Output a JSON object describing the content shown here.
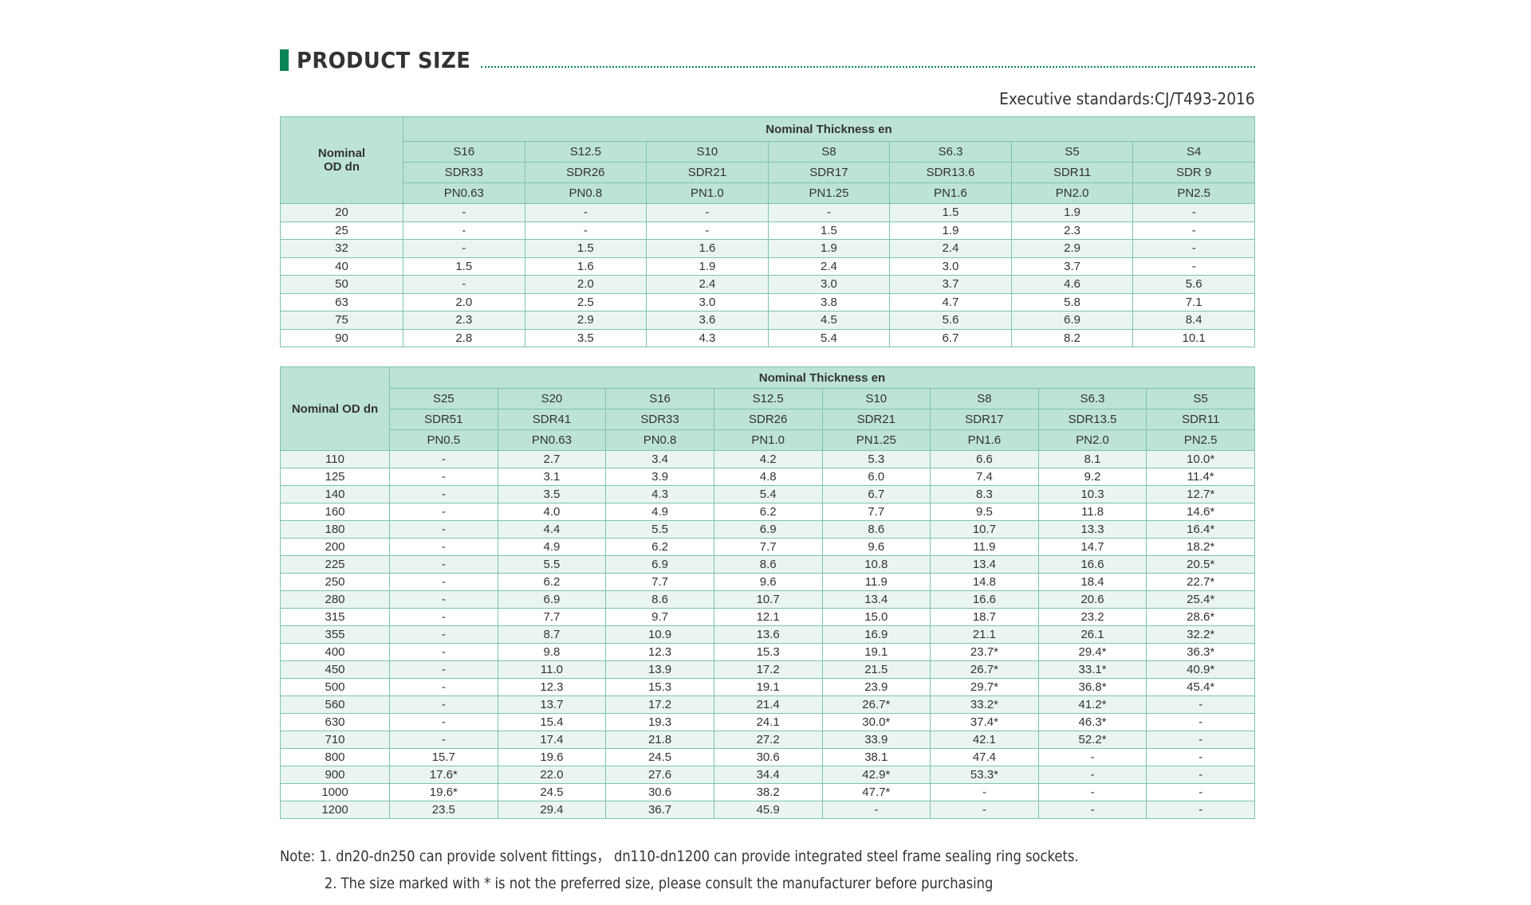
{
  "header": {
    "title": "PRODUCT SIZE",
    "standard": "Executive standards:CJ/T493-2016",
    "accent_color": "#0b8457",
    "header_bg": "#bde3d6",
    "border_color": "#7cc4ac"
  },
  "table1": {
    "od_header": "Nominal OD dn",
    "od_header_lines": [
      "Nominal",
      "OD dn"
    ],
    "group_header": "Nominal Thickness en",
    "series": [
      "S16",
      "S12.5",
      "S10",
      "S8",
      "S6.3",
      "S5",
      "S4"
    ],
    "sdr": [
      "SDR33",
      "SDR26",
      "SDR21",
      "SDR17",
      "SDR13.6",
      "SDR11",
      "SDR 9"
    ],
    "pn": [
      "PN0.63",
      "PN0.8",
      "PN1.0",
      "PN1.25",
      "PN1.6",
      "PN2.0",
      "PN2.5"
    ],
    "rows": [
      [
        "20",
        "-",
        "-",
        "-",
        "-",
        "1.5",
        "1.9",
        "-"
      ],
      [
        "25",
        "-",
        "-",
        "-",
        "1.5",
        "1.9",
        "2.3",
        "-"
      ],
      [
        "32",
        "-",
        "1.5",
        "1.6",
        "1.9",
        "2.4",
        "2.9",
        "-"
      ],
      [
        "40",
        "1.5",
        "1.6",
        "1.9",
        "2.4",
        "3.0",
        "3.7",
        "-"
      ],
      [
        "50",
        "-",
        "2.0",
        "2.4",
        "3.0",
        "3.7",
        "4.6",
        "5.6"
      ],
      [
        "63",
        "2.0",
        "2.5",
        "3.0",
        "3.8",
        "4.7",
        "5.8",
        "7.1"
      ],
      [
        "75",
        "2.3",
        "2.9",
        "3.6",
        "4.5",
        "5.6",
        "6.9",
        "8.4"
      ],
      [
        "90",
        "2.8",
        "3.5",
        "4.3",
        "5.4",
        "6.7",
        "8.2",
        "10.1"
      ]
    ]
  },
  "table2": {
    "od_header": "Nominal OD dn",
    "group_header": "Nominal Thickness en",
    "series": [
      "S25",
      "S20",
      "S16",
      "S12.5",
      "S10",
      "S8",
      "S6.3",
      "S5"
    ],
    "sdr": [
      "SDR51",
      "SDR41",
      "SDR33",
      "SDR26",
      "SDR21",
      "SDR17",
      "SDR13.5",
      "SDR11"
    ],
    "pn": [
      "PN0.5",
      "PN0.63",
      "PN0.8",
      "PN1.0",
      "PN1.25",
      "PN1.6",
      "PN2.0",
      "PN2.5"
    ],
    "rows": [
      [
        "110",
        "-",
        "2.7",
        "3.4",
        "4.2",
        "5.3",
        "6.6",
        "8.1",
        "10.0*"
      ],
      [
        "125",
        "-",
        "3.1",
        "3.9",
        "4.8",
        "6.0",
        "7.4",
        "9.2",
        "11.4*"
      ],
      [
        "140",
        "-",
        "3.5",
        "4.3",
        "5.4",
        "6.7",
        "8.3",
        "10.3",
        "12.7*"
      ],
      [
        "160",
        "-",
        "4.0",
        "4.9",
        "6.2",
        "7.7",
        "9.5",
        "11.8",
        "14.6*"
      ],
      [
        "180",
        "-",
        "4.4",
        "5.5",
        "6.9",
        "8.6",
        "10.7",
        "13.3",
        "16.4*"
      ],
      [
        "200",
        "-",
        "4.9",
        "6.2",
        "7.7",
        "9.6",
        "11.9",
        "14.7",
        "18.2*"
      ],
      [
        "225",
        "-",
        "5.5",
        "6.9",
        "8.6",
        "10.8",
        "13.4",
        "16.6",
        "20.5*"
      ],
      [
        "250",
        "-",
        "6.2",
        "7.7",
        "9.6",
        "11.9",
        "14.8",
        "18.4",
        "22.7*"
      ],
      [
        "280",
        "-",
        "6.9",
        "8.6",
        "10.7",
        "13.4",
        "16.6",
        "20.6",
        "25.4*"
      ],
      [
        "315",
        "-",
        "7.7",
        "9.7",
        "12.1",
        "15.0",
        "18.7",
        "23.2",
        "28.6*"
      ],
      [
        "355",
        "-",
        "8.7",
        "10.9",
        "13.6",
        "16.9",
        "21.1",
        "26.1",
        "32.2*"
      ],
      [
        "400",
        "-",
        "9.8",
        "12.3",
        "15.3",
        "19.1",
        "23.7*",
        "29.4*",
        "36.3*"
      ],
      [
        "450",
        "-",
        "11.0",
        "13.9",
        "17.2",
        "21.5",
        "26.7*",
        "33.1*",
        "40.9*"
      ],
      [
        "500",
        "-",
        "12.3",
        "15.3",
        "19.1",
        "23.9",
        "29.7*",
        "36.8*",
        "45.4*"
      ],
      [
        "560",
        "-",
        "13.7",
        "17.2",
        "21.4",
        "26.7*",
        "33.2*",
        "41.2*",
        "-"
      ],
      [
        "630",
        "-",
        "15.4",
        "19.3",
        "24.1",
        "30.0*",
        "37.4*",
        "46.3*",
        "-"
      ],
      [
        "710",
        "-",
        "17.4",
        "21.8",
        "27.2",
        "33.9",
        "42.1",
        "52.2*",
        "-"
      ],
      [
        "800",
        "15.7",
        "19.6",
        "24.5",
        "30.6",
        "38.1",
        "47.4",
        "-",
        "-"
      ],
      [
        "900",
        "17.6*",
        "22.0",
        "27.6",
        "34.4",
        "42.9*",
        "53.3*",
        "-",
        "-"
      ],
      [
        "1000",
        "19.6*",
        "24.5",
        "30.6",
        "38.2",
        "47.7*",
        "-",
        "-",
        "-"
      ],
      [
        "1200",
        "23.5",
        "29.4",
        "36.7",
        "45.9",
        "-",
        "-",
        "-",
        "-"
      ]
    ]
  },
  "notes": {
    "line1": "Note: 1. dn20-dn250 can provide solvent fittings，  dn110-dn1200 can provide integrated steel frame sealing ring sockets.",
    "line2": "2. The size marked with * is not the preferred size, please consult the manufacturer before purchasing"
  }
}
